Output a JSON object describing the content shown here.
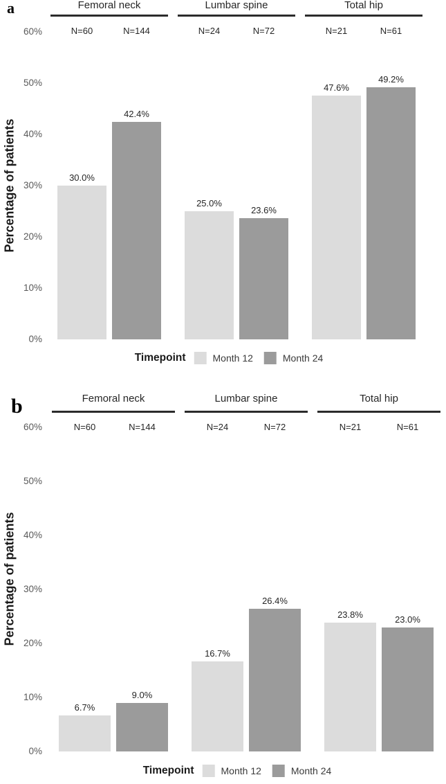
{
  "chart_data": [
    {
      "type": "bar",
      "panel": "a",
      "ylabel": "Percentage of patients",
      "ylim": [
        0,
        60
      ],
      "ytick_labels": [
        "60%",
        "50%",
        "40%",
        "30%",
        "20%",
        "10%",
        "0%"
      ],
      "grid": false,
      "legend_position": "bottom",
      "legend_title": "Timepoint",
      "categories": [
        "Femoral neck",
        "Lumbar spine",
        "Total hip"
      ],
      "sample_sizes": [
        [
          "N=60",
          "N=144"
        ],
        [
          "N=24",
          "N=72"
        ],
        [
          "N=21",
          "N=61"
        ]
      ],
      "series": [
        {
          "name": "Month 12",
          "color": "#dcdcdc",
          "values": [
            30.0,
            25.0,
            47.6
          ],
          "value_labels": [
            "30.0%",
            "25.0%",
            "47.6%"
          ]
        },
        {
          "name": "Month 24",
          "color": "#9b9b9b",
          "values": [
            42.4,
            23.6,
            49.2
          ],
          "value_labels": [
            "42.4%",
            "23.6%",
            "49.2%"
          ]
        }
      ]
    },
    {
      "type": "bar",
      "panel": "b",
      "ylabel": "Percentage of patients",
      "ylim": [
        0,
        60
      ],
      "ytick_labels": [
        "60%",
        "50%",
        "40%",
        "30%",
        "20%",
        "10%",
        "0%"
      ],
      "grid": false,
      "legend_position": "bottom",
      "legend_title": "Timepoint",
      "categories": [
        "Femoral neck",
        "Lumbar spine",
        "Total hip"
      ],
      "sample_sizes": [
        [
          "N=60",
          "N=144"
        ],
        [
          "N=24",
          "N=72"
        ],
        [
          "N=21",
          "N=61"
        ]
      ],
      "series": [
        {
          "name": "Month 12",
          "color": "#dcdcdc",
          "values": [
            6.7,
            16.7,
            23.8
          ],
          "value_labels": [
            "6.7%",
            "16.7%",
            "23.8%"
          ]
        },
        {
          "name": "Month 24",
          "color": "#9b9b9b",
          "values": [
            9.0,
            26.4,
            23.0
          ],
          "value_labels": [
            "9.0%",
            "26.4%",
            "23.0%"
          ]
        }
      ]
    }
  ]
}
